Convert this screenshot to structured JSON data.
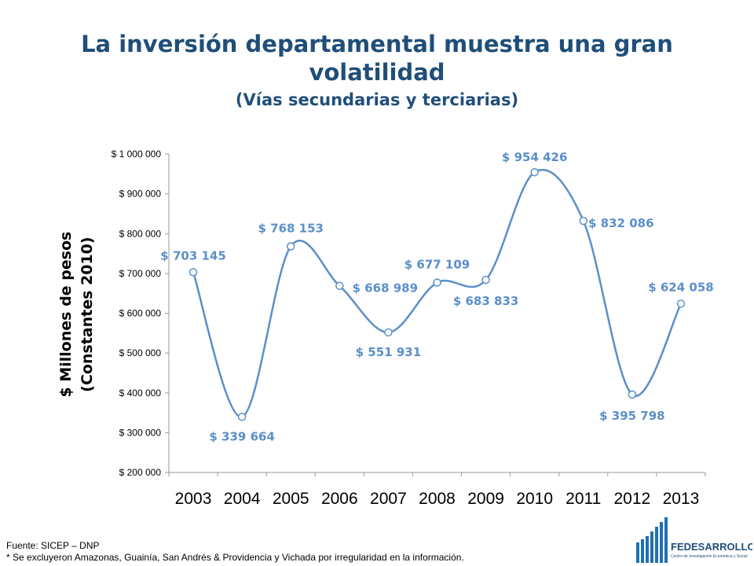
{
  "page": {
    "title": "La inversión departamental muestra una gran volatilidad",
    "subtitle": "(Vías secundarias y terciarias)",
    "source_note": "Fuente: SICEP – DNP",
    "exclusion_note": "* Se excluyeron Amazonas, Guainía, San Andrés & Providencia y Vichada por irregularidad en la información.",
    "logo_text": "FEDESARROLLO",
    "logo_tagline": "Centro de Investigación Económica y Social"
  },
  "chart_data": {
    "type": "line",
    "x": [
      "2003",
      "2004",
      "2005",
      "2006",
      "2007",
      "2008",
      "2009",
      "2010",
      "2011",
      "2012",
      "2013"
    ],
    "series": [
      {
        "values": [
          703145,
          339664,
          768153,
          668989,
          551931,
          677109,
          683833,
          954426,
          832086,
          395798,
          624058
        ]
      }
    ],
    "data_labels": [
      "$ 703 145",
      "$ 339 664",
      "$ 768 153",
      "$ 668 989",
      "$ 551 931",
      "$ 677 109",
      "$ 683 833",
      "$ 954 426",
      "$ 832 086",
      "$ 395 798",
      "$ 624 058"
    ],
    "ylabel_lines": [
      "$ Millones de pesos",
      "(Constantes 2010)"
    ],
    "ylim": [
      200000,
      1000000
    ],
    "yticks": [
      200000,
      300000,
      400000,
      500000,
      600000,
      700000,
      800000,
      900000,
      1000000
    ],
    "ytick_labels": [
      "$ 200 000",
      "$ 300 000",
      "$ 400 000",
      "$ 500 000",
      "$ 600 000",
      "$ 700 000",
      "$ 800 000",
      "$ 900 000",
      "$ 1 000 000"
    ],
    "grid": false,
    "smooth": true,
    "line_color": "#5b8fc9",
    "label_color": "#5b8fc9",
    "title_color": "#1f4e79"
  }
}
